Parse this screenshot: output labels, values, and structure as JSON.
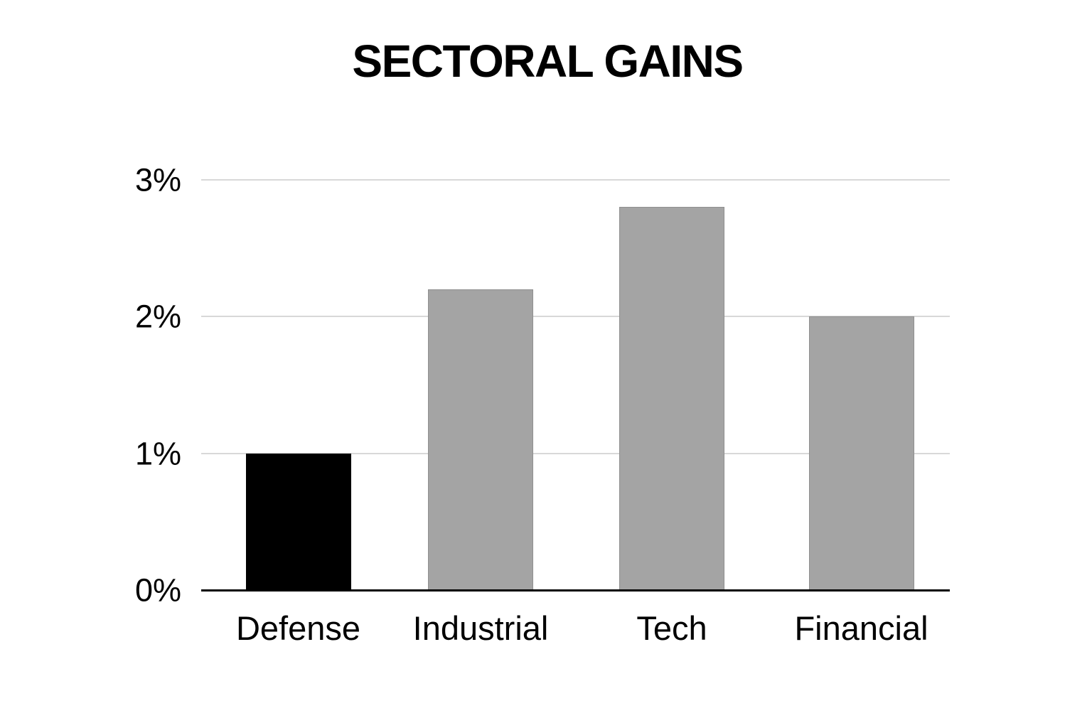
{
  "page": {
    "background": "#ffffff"
  },
  "chart_data": {
    "type": "bar",
    "title": "SECTORAL GAINS",
    "categories": [
      "Defense",
      "Industrial",
      "Tech",
      "Financial"
    ],
    "values": [
      1.0,
      2.2,
      2.8,
      2.0
    ],
    "unit": "%",
    "xlabel": "",
    "ylabel": "",
    "ylim": [
      0,
      3
    ],
    "yticks": [
      0,
      1,
      2,
      3
    ],
    "ytick_labels": [
      "0%",
      "1%",
      "2%",
      "3%"
    ],
    "grid": "horizontal-light",
    "legend": "none",
    "highlighted_category": "Defense",
    "colors": {
      "highlighted_bar": "#000000",
      "bar": "#a4a4a4",
      "bar_border": "#8f8f8f",
      "gridline": "#d8d8d8",
      "axis_line": "#000000",
      "text": "#000000",
      "background": "#ffffff"
    }
  }
}
